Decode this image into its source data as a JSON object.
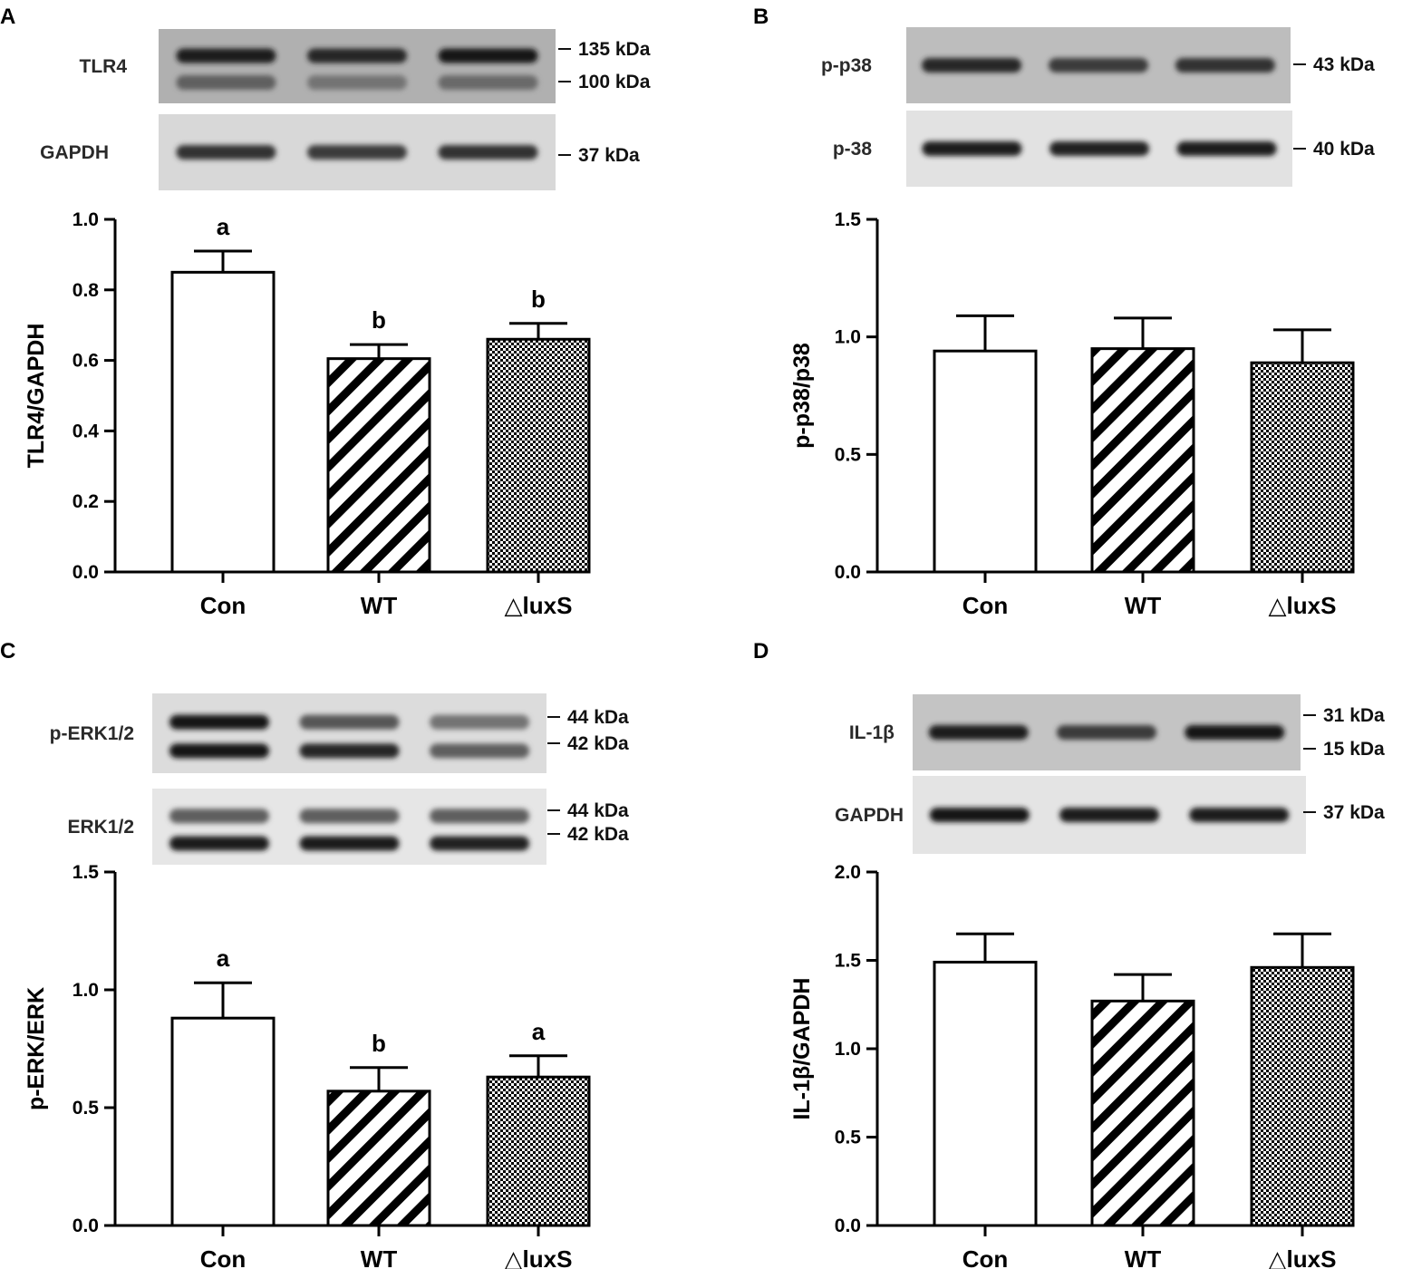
{
  "panels": [
    {
      "id": "A",
      "letter": "A",
      "blots": [
        {
          "label": "TLR4",
          "kda": [
            "135 kDa",
            "100 kDa"
          ],
          "bands": [
            [
              0.9,
              0.85,
              0.92
            ],
            [
              0.55,
              0.45,
              0.5
            ]
          ],
          "bg": "#b0b0b0"
        },
        {
          "label": "GAPDH",
          "kda": [
            "37 kDa"
          ],
          "bands": [
            [
              0.8,
              0.75,
              0.8
            ]
          ],
          "bg": "#d8d8d8"
        }
      ],
      "chart_data": {
        "type": "bar",
        "categories": [
          "Con",
          "WT",
          "△luxS"
        ],
        "values": [
          0.85,
          0.605,
          0.66
        ],
        "errors": [
          0.06,
          0.04,
          0.045
        ],
        "significance": [
          "a",
          "b",
          "b"
        ],
        "ylabel": "TLR4/GAPDH",
        "ylim": [
          0,
          1.0
        ],
        "yticks": [
          "0.0",
          "0.2",
          "0.4",
          "0.6",
          "0.8",
          "1.0"
        ],
        "patterns": [
          "none",
          "diagonal",
          "checker"
        ]
      }
    },
    {
      "id": "B",
      "letter": "B",
      "blots": [
        {
          "label": "p-p38",
          "kda": [
            "43 kDa"
          ],
          "bands": [
            [
              0.85,
              0.75,
              0.8
            ]
          ],
          "bg": "#bdbdbd"
        },
        {
          "label": "p-38",
          "kda": [
            "40 kDa"
          ],
          "bands": [
            [
              0.9,
              0.88,
              0.9
            ]
          ],
          "bg": "#e2e2e2"
        }
      ],
      "chart_data": {
        "type": "bar",
        "categories": [
          "Con",
          "WT",
          "△luxS"
        ],
        "values": [
          0.94,
          0.95,
          0.89
        ],
        "errors": [
          0.15,
          0.13,
          0.14
        ],
        "significance": [
          "",
          "",
          ""
        ],
        "ylabel": "p-p38/p38",
        "ylim": [
          0,
          1.5
        ],
        "yticks": [
          "0.0",
          "0.5",
          "1.0",
          "1.5"
        ],
        "patterns": [
          "none",
          "diagonal",
          "checker"
        ]
      }
    },
    {
      "id": "C",
      "letter": "C",
      "blots": [
        {
          "label": "p-ERK1/2",
          "kda": [
            "44 kDa",
            "42 kDa"
          ],
          "bands": [
            [
              0.95,
              0.6,
              0.45
            ],
            [
              0.95,
              0.85,
              0.55
            ]
          ],
          "bg": "#dcdcdc"
        },
        {
          "label": "ERK1/2",
          "kda": [
            "44 kDa",
            "42 kDa"
          ],
          "bands": [
            [
              0.55,
              0.55,
              0.55
            ],
            [
              0.9,
              0.9,
              0.88
            ]
          ],
          "bg": "#e6e6e6"
        }
      ],
      "chart_data": {
        "type": "bar",
        "categories": [
          "Con",
          "WT",
          "△luxS"
        ],
        "values": [
          0.88,
          0.57,
          0.63
        ],
        "errors": [
          0.15,
          0.1,
          0.09
        ],
        "significance": [
          "a",
          "b",
          "a"
        ],
        "ylabel": "p-ERK/ERK",
        "ylim": [
          0,
          1.5
        ],
        "yticks": [
          "0.0",
          "0.5",
          "1.0",
          "1.5"
        ],
        "patterns": [
          "none",
          "diagonal",
          "checker"
        ]
      }
    },
    {
      "id": "D",
      "letter": "D",
      "blots": [
        {
          "label": "IL-1β",
          "kda": [
            "31 kDa",
            "15 kDa"
          ],
          "bands": [
            [
              0.9,
              0.75,
              0.95
            ]
          ],
          "bg": "#c4c4c4"
        },
        {
          "label": "GAPDH",
          "kda": [
            "37 kDa"
          ],
          "bands": [
            [
              0.95,
              0.9,
              0.9
            ]
          ],
          "bg": "#e4e4e4"
        }
      ],
      "chart_data": {
        "type": "bar",
        "categories": [
          "Con",
          "WT",
          "△luxS"
        ],
        "values": [
          1.49,
          1.27,
          1.46
        ],
        "errors": [
          0.16,
          0.15,
          0.19
        ],
        "significance": [
          "",
          "",
          ""
        ],
        "ylabel": "IL-1β/GAPDH",
        "ylim": [
          0,
          2.0
        ],
        "yticks": [
          "0.0",
          "0.5",
          "1.0",
          "1.5",
          "2.0"
        ],
        "patterns": [
          "none",
          "diagonal",
          "checker"
        ]
      }
    }
  ]
}
